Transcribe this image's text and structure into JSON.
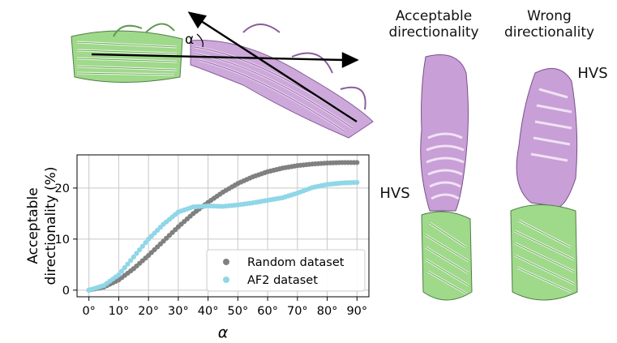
{
  "labels": {
    "acceptable": "Acceptable directionality",
    "wrong": "Wrong directionality",
    "hvs_left": "HVS",
    "hvs_right": "HVS",
    "alpha_symbol": "α"
  },
  "colors": {
    "barrel_green": "#9fd98a",
    "passenger_purple": "#c89fd6",
    "random": "#808080",
    "af2": "#8fd6e8"
  },
  "chart_data": {
    "type": "scatter",
    "xlabel": "α",
    "ylabel": "Acceptable directionality (%)",
    "xlim": [
      -4,
      94
    ],
    "ylim": [
      -1.3,
      26.5
    ],
    "xticks": [
      "0°",
      "10°",
      "20°",
      "30°",
      "40°",
      "50°",
      "60°",
      "70°",
      "80°",
      "90°"
    ],
    "xtick_values": [
      0,
      10,
      20,
      30,
      40,
      50,
      60,
      70,
      80,
      90
    ],
    "yticks": [
      "0",
      "10",
      "20"
    ],
    "ytick_values": [
      0,
      10,
      20
    ],
    "grid": true,
    "legend_position": "lower-right",
    "series": [
      {
        "name": "Random dataset",
        "color": "#808080",
        "x": [
          0,
          5,
          10,
          15,
          20,
          25,
          30,
          35,
          40,
          45,
          50,
          55,
          60,
          65,
          70,
          75,
          80,
          85,
          90
        ],
        "y": [
          0,
          0.6,
          2.0,
          4.2,
          6.8,
          9.6,
          12.4,
          15.0,
          17.2,
          19.2,
          20.9,
          22.2,
          23.2,
          23.9,
          24.4,
          24.7,
          24.9,
          25.0,
          25.0
        ]
      },
      {
        "name": "AF2 dataset",
        "color": "#8fd6e8",
        "x": [
          0,
          5,
          10,
          15,
          20,
          25,
          30,
          35,
          40,
          45,
          50,
          55,
          60,
          65,
          70,
          75,
          80,
          85,
          90
        ],
        "y": [
          0,
          0.9,
          3.0,
          6.5,
          10.0,
          12.9,
          15.3,
          16.3,
          16.5,
          16.4,
          16.7,
          17.1,
          17.6,
          18.1,
          19.0,
          20.1,
          20.7,
          21.0,
          21.1
        ]
      }
    ]
  }
}
